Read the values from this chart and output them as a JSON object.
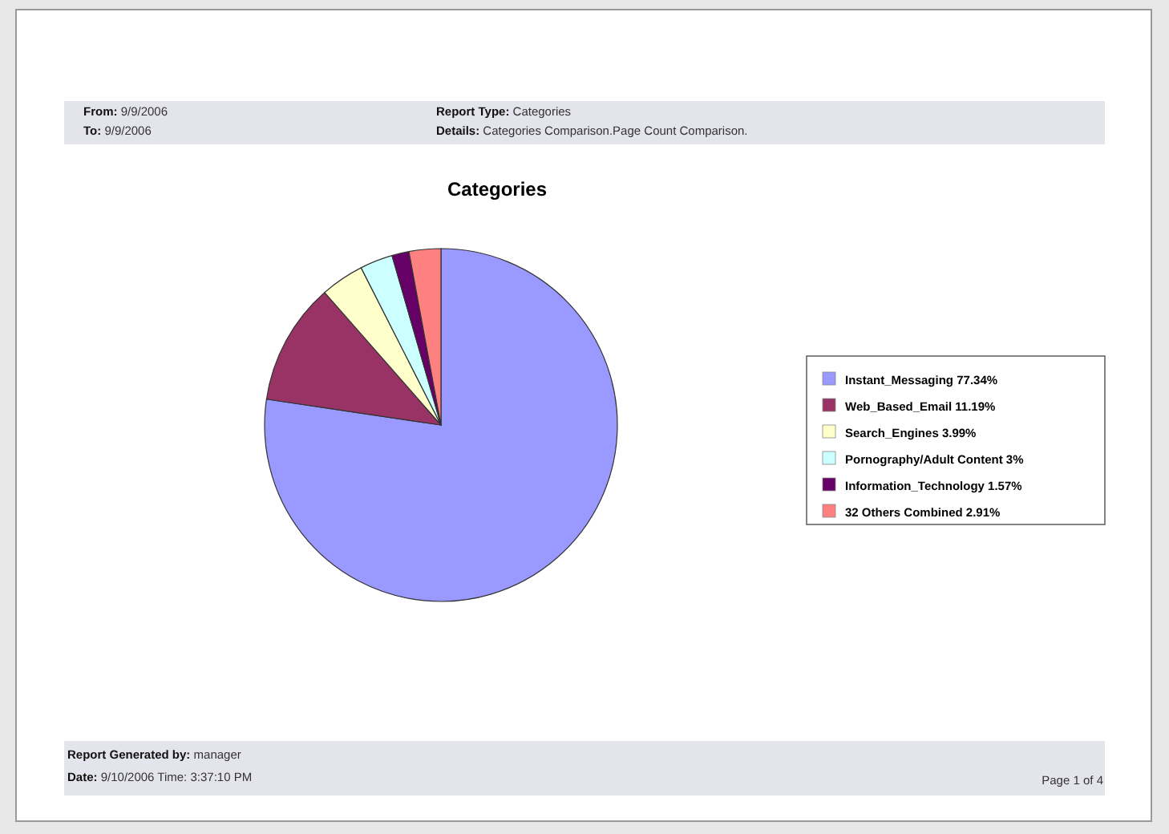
{
  "chart_data": {
    "type": "pie",
    "title": "Categories",
    "categories": [
      "Instant_Messaging 77.34%",
      "Web_Based_Email 11.19%",
      "Search_Engines 3.99%",
      "Pornography/Adult Content 3%",
      "Information_Technology 1.57%",
      "32 Others Combined 2.91%"
    ],
    "values": [
      77.34,
      11.19,
      3.99,
      3,
      1.57,
      2.91
    ],
    "colors": [
      "#9999ff",
      "#993366",
      "#ffffcc",
      "#ccffff",
      "#660066",
      "#ff8080"
    ],
    "legend": "right",
    "annotations": [
      "From: 9/9/2006",
      "To: 9/9/2006",
      "Report Type: Categories",
      "Details: Categories Comparison.Page Count Comparison.",
      "Report Generated by: manager",
      "Date: 9/10/2006 Time: 3:37:10 PM",
      "Page 1 of 4"
    ]
  }
}
